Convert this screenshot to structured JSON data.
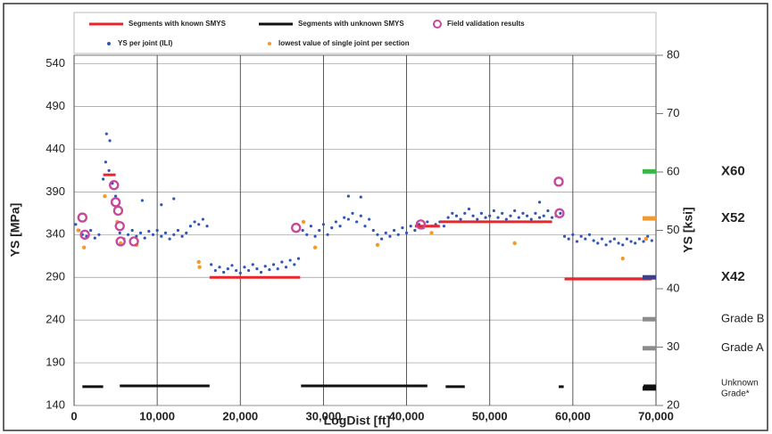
{
  "chart_data": {
    "type": "scatter",
    "x_label": "LogDist [ft]",
    "y_label": "YS [MPa]",
    "y2_label": "YS [ksi]",
    "xlim": [
      0,
      70000
    ],
    "xticks": [
      0,
      {
        "value": 10000,
        "label": "10,000"
      },
      {
        "value": 20000,
        "label": "20,000"
      },
      {
        "value": 30000,
        "label": "30,000"
      },
      {
        "value": 40000,
        "label": "40,000"
      },
      {
        "value": 50000,
        "label": "50,000"
      },
      {
        "value": 60000,
        "label": "60,000"
      },
      {
        "value": 70000,
        "label": "70,000"
      }
    ],
    "ylim": [
      140,
      550
    ],
    "yticks": [
      140,
      190,
      240,
      290,
      340,
      390,
      440,
      490,
      540
    ],
    "y2lim": [
      20,
      80
    ],
    "y2ticks": [
      20,
      30,
      40,
      50,
      60,
      70,
      80
    ],
    "grid": true,
    "series": [
      {
        "name": "Segments with known SMYS",
        "color": "#e8262b",
        "kind": "segment",
        "x_start": [
          3500,
          16300,
          41000,
          44000,
          59000
        ],
        "x_end": [
          5000,
          27200,
          44000,
          57500,
          69500
        ],
        "values": [
          410,
          290,
          350,
          355,
          288
        ]
      },
      {
        "name": "Segments with unknown SMYS",
        "color": "#111111",
        "kind": "segment",
        "x_start": [
          1000,
          5500,
          27300,
          44700,
          58300,
          68500
        ],
        "x_end": [
          3500,
          16300,
          42500,
          47000,
          58900,
          70000
        ],
        "values": [
          162,
          163,
          163,
          162,
          162,
          163
        ]
      },
      {
        "name": "Field validation results",
        "color": "#c8489a",
        "kind": "ring",
        "x": [
          1000,
          1300,
          4800,
          5000,
          5300,
          5500,
          5600,
          7200,
          26700,
          41700,
          58300,
          58400
        ],
        "values": [
          360,
          340,
          398,
          378,
          368,
          350,
          332,
          332,
          348,
          352,
          402,
          365
        ]
      },
      {
        "name": "YS per joint (ILI)",
        "color": "#2f55b8",
        "kind": "dot",
        "x": [
          200,
          600,
          1000,
          1500,
          2000,
          2500,
          3000,
          3500,
          3800,
          4200,
          4600,
          5000,
          5500,
          6000,
          6500,
          7000,
          7500,
          8000,
          8500,
          9000,
          9500,
          10000,
          10500,
          11000,
          11500,
          12000,
          12500,
          13000,
          13500,
          14000,
          14500,
          15000,
          15500,
          16000,
          16500,
          17000,
          17500,
          18000,
          18500,
          19000,
          19500,
          20000,
          20500,
          21000,
          21500,
          22000,
          22500,
          23000,
          23500,
          24000,
          24500,
          25000,
          25500,
          26000,
          26500,
          27000,
          27500,
          28000,
          28500,
          29000,
          29500,
          30000,
          30500,
          31000,
          31500,
          32000,
          32500,
          33000,
          33500,
          34000,
          34500,
          35000,
          35500,
          36000,
          36500,
          37000,
          37500,
          38000,
          38500,
          39000,
          39500,
          40000,
          40500,
          41000,
          41500,
          42000,
          42500,
          43000,
          43500,
          44000,
          44500,
          45000,
          45500,
          46000,
          46500,
          47000,
          47500,
          48000,
          48500,
          49000,
          49500,
          50000,
          50500,
          51000,
          51500,
          52000,
          52500,
          53000,
          53500,
          54000,
          54500,
          55000,
          55500,
          56000,
          56500,
          57000,
          57500,
          58000,
          58500,
          59000,
          59500,
          60000,
          60500,
          61000,
          61500,
          62000,
          62500,
          63000,
          63500,
          64000,
          64500,
          65000,
          65500,
          66000,
          66500,
          67000,
          67500,
          68000,
          68500,
          69000,
          69500,
          3900,
          4300,
          8200,
          10500,
          12000,
          33000,
          34500,
          56000
        ],
        "values": [
          352,
          345,
          340,
          338,
          345,
          336,
          340,
          405,
          425,
          415,
          400,
          385,
          342,
          335,
          340,
          345,
          338,
          342,
          336,
          344,
          340,
          345,
          338,
          342,
          335,
          340,
          345,
          338,
          342,
          350,
          355,
          352,
          358,
          350,
          305,
          298,
          302,
          296,
          300,
          304,
          298,
          295,
          302,
          298,
          305,
          300,
          296,
          303,
          299,
          305,
          300,
          308,
          302,
          310,
          305,
          312,
          345,
          340,
          350,
          338,
          345,
          352,
          340,
          348,
          355,
          350,
          360,
          358,
          365,
          355,
          362,
          350,
          358,
          345,
          340,
          335,
          342,
          338,
          345,
          340,
          348,
          342,
          350,
          345,
          352,
          348,
          355,
          350,
          352,
          355,
          350,
          360,
          365,
          362,
          358,
          365,
          370,
          362,
          358,
          365,
          360,
          362,
          368,
          360,
          365,
          358,
          362,
          368,
          360,
          365,
          362,
          358,
          365,
          360,
          362,
          368,
          360,
          362,
          365,
          338,
          335,
          340,
          332,
          338,
          335,
          340,
          333,
          330,
          335,
          328,
          332,
          335,
          330,
          328,
          335,
          332,
          330,
          335,
          332,
          338,
          333,
          458,
          450,
          380,
          375,
          382,
          385,
          384,
          378
        ]
      },
      {
        "name": "lowest value of single joint per section",
        "color": "#f29a2e",
        "kind": "dot",
        "x": [
          500,
          1200,
          3700,
          5200,
          5600,
          7500,
          15000,
          15100,
          27600,
          29000,
          36500,
          41800,
          43000,
          53000,
          66000,
          68800
        ],
        "values": [
          345,
          325,
          385,
          355,
          330,
          328,
          308,
          302,
          355,
          325,
          328,
          348,
          342,
          330,
          312,
          335
        ]
      }
    ],
    "grade_markers": [
      {
        "label_lines": [
          "X60"
        ],
        "value": 414,
        "color": "#3bb54a"
      },
      {
        "label_lines": [
          "X52"
        ],
        "value": 359,
        "color": "#f29a2e"
      },
      {
        "label_lines": [
          "X42"
        ],
        "value": 290,
        "color": "#3d3f8f"
      },
      {
        "label_lines": [
          "Grade B"
        ],
        "value": 241,
        "color": "#8c8c8c"
      },
      {
        "label_lines": [
          "Grade A"
        ],
        "value": 207,
        "color": "#8c8c8c"
      },
      {
        "label_lines": [
          "Unknown",
          "Grade*"
        ],
        "value": 160,
        "color": "#111111"
      }
    ]
  }
}
